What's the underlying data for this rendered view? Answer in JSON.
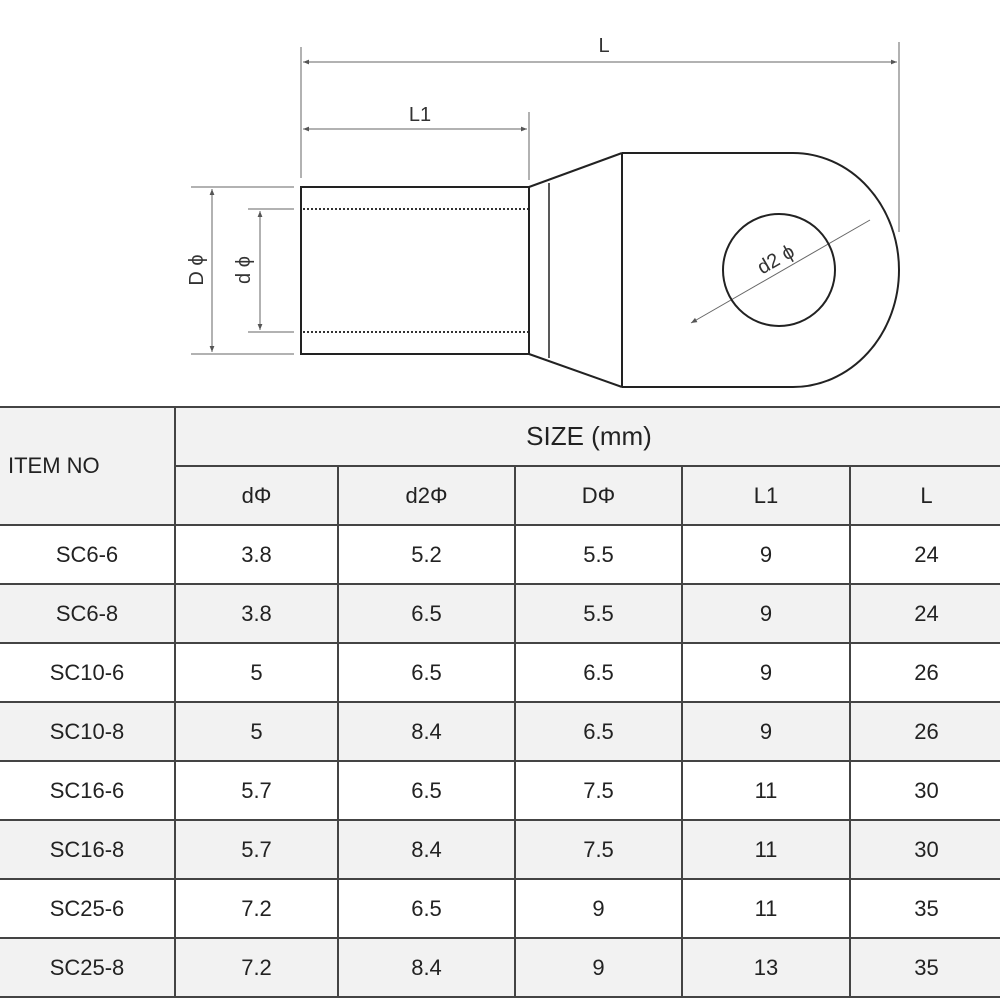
{
  "drawing": {
    "labels": {
      "L": "L",
      "L1": "L1",
      "D": "D ϕ",
      "d": "d ϕ",
      "d2": "d2 ϕ"
    }
  },
  "table": {
    "item_header": "ITEM NO",
    "size_header": "SIZE  (mm)",
    "columns": [
      "dΦ",
      "d2Φ",
      "DΦ",
      "L1",
      "L"
    ],
    "rows": [
      {
        "item": "SC6-6",
        "values": [
          "3.8",
          "5.2",
          "5.5",
          "9",
          "24"
        ]
      },
      {
        "item": "SC6-8",
        "values": [
          "3.8",
          "6.5",
          "5.5",
          "9",
          "24"
        ]
      },
      {
        "item": "SC10-6",
        "values": [
          "5",
          "6.5",
          "6.5",
          "9",
          "26"
        ]
      },
      {
        "item": "SC10-8",
        "values": [
          "5",
          "8.4",
          "6.5",
          "9",
          "26"
        ]
      },
      {
        "item": "SC16-6",
        "values": [
          "5.7",
          "6.5",
          "7.5",
          "11",
          "30"
        ]
      },
      {
        "item": "SC16-8",
        "values": [
          "5.7",
          "8.4",
          "7.5",
          "11",
          "30"
        ]
      },
      {
        "item": "SC25-6",
        "values": [
          "7.2",
          "6.5",
          "9",
          "11",
          "35"
        ]
      },
      {
        "item": "SC25-8",
        "values": [
          "7.2",
          "8.4",
          "9",
          "13",
          "35"
        ]
      }
    ]
  },
  "colors": {
    "line": "#444444",
    "header_bg": "#f2f2f2",
    "text": "#222222"
  }
}
